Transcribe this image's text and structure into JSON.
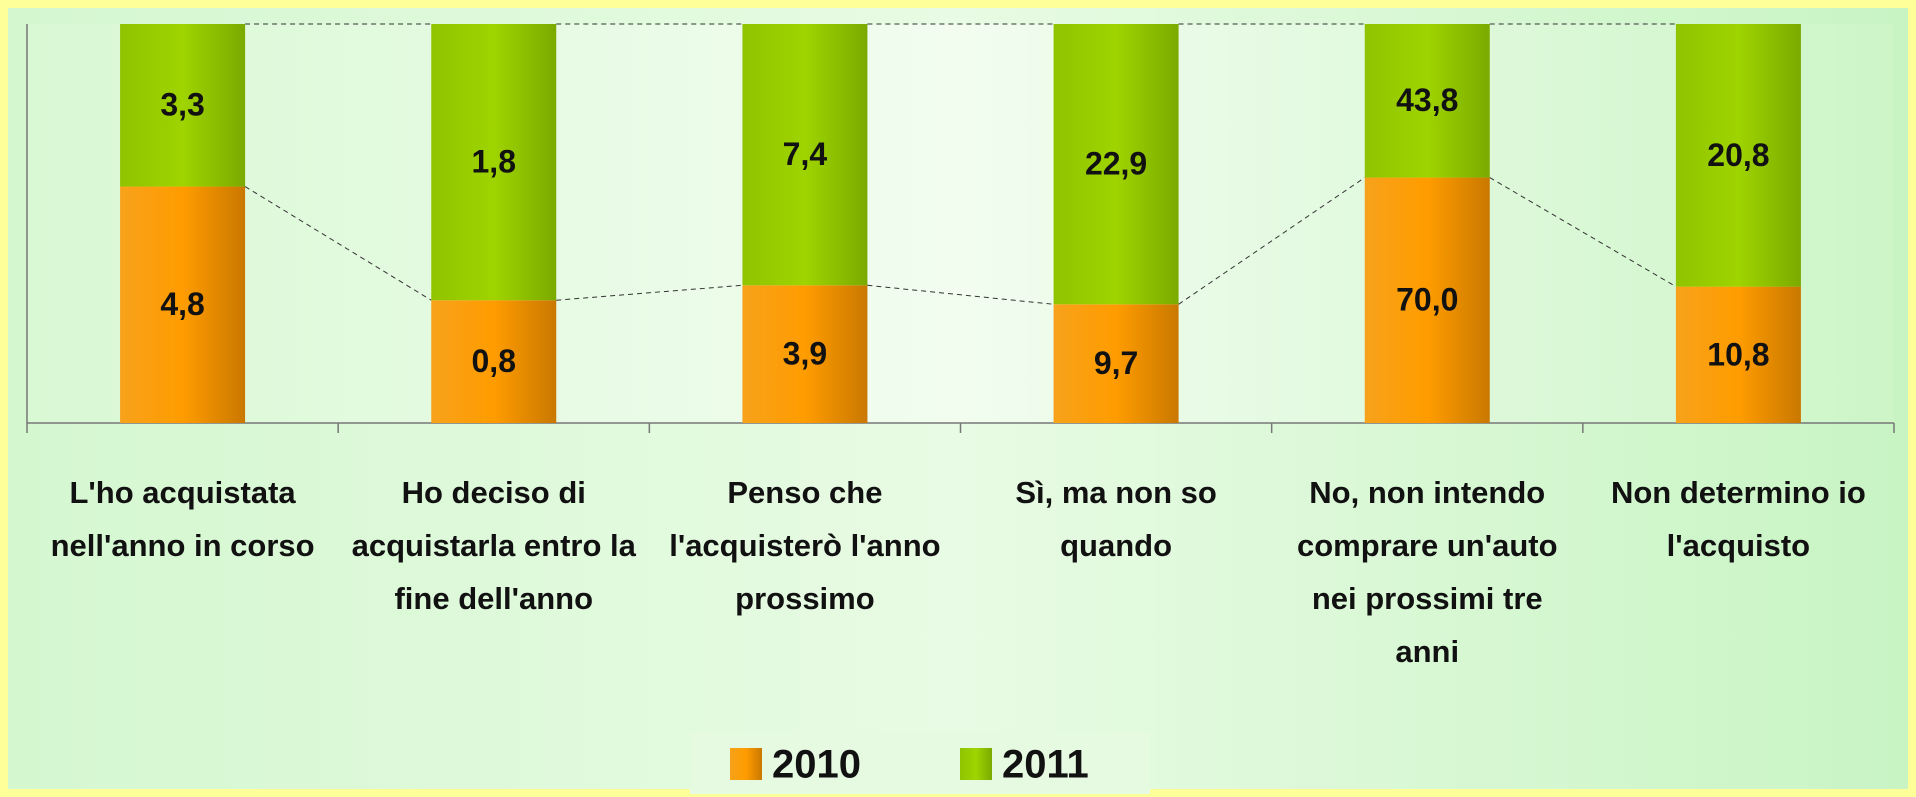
{
  "chart_data": {
    "type": "bar",
    "stacking": "percent",
    "categories": [
      "L'ho acquistata nell'anno in corso",
      "Ho deciso di acquistarla entro la fine dell'anno",
      "Penso che l'acquisterò l'anno prossimo",
      "Sì, ma non so quando",
      "No, non intendo comprare un'auto nei prossimi tre anni",
      "Non determino io l'acquisto"
    ],
    "series": [
      {
        "name": "2010",
        "color": "#f39200",
        "values": [
          4.8,
          0.8,
          3.9,
          9.7,
          70.0,
          10.8
        ],
        "value_labels": [
          "4,8",
          "0,8",
          "3,9",
          "9,7",
          "70,0",
          "10,8"
        ]
      },
      {
        "name": "2011",
        "color": "#99cc00",
        "values": [
          3.3,
          1.8,
          7.4,
          22.9,
          43.8,
          20.8
        ],
        "value_labels": [
          "3,3",
          "1,8",
          "7,4",
          "22,9",
          "43,8",
          "20,8"
        ]
      }
    ],
    "legend": "bottom",
    "series_lines": true
  }
}
